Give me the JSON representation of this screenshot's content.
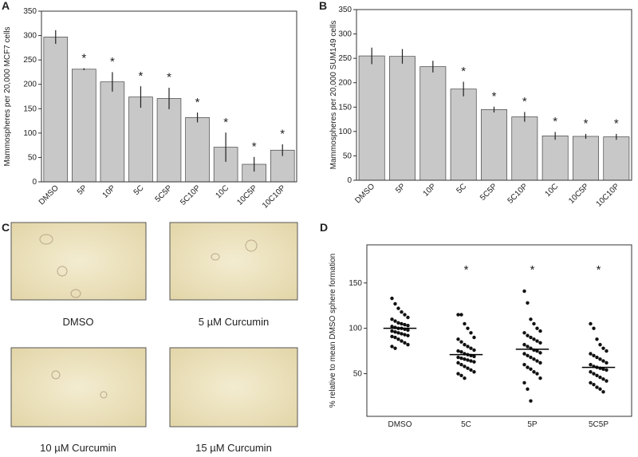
{
  "chart_data": [
    {
      "type": "bar",
      "panel": "A",
      "y_label": "Mammospheres per 20,000 MCF7 cells",
      "categories": [
        "DMSO",
        "5P",
        "10P",
        "5C",
        "5C5P",
        "5C10P",
        "10C",
        "10C5P",
        "10C10P"
      ],
      "values": [
        297,
        231,
        205,
        174,
        171,
        132,
        71,
        36,
        65
      ],
      "errors": [
        14,
        2,
        20,
        22,
        22,
        10,
        30,
        15,
        12
      ],
      "color": "#c8c8c8",
      "ylim": [
        0,
        350
      ],
      "yticks": [
        0,
        50,
        100,
        150,
        200,
        250,
        300,
        350
      ],
      "annotations": [
        {
          "text": "*",
          "x": "5P"
        },
        {
          "text": "*",
          "x": "10P"
        },
        {
          "text": "*",
          "x": "5C"
        },
        {
          "text": "*",
          "x": "5C5P"
        },
        {
          "text": "*",
          "x": "5C10P"
        },
        {
          "text": "*",
          "x": "10C"
        },
        {
          "text": "*",
          "x": "10C5P"
        },
        {
          "text": "*",
          "x": "10C10P"
        }
      ]
    },
    {
      "type": "bar",
      "panel": "B",
      "y_label": "Mammospheres per 20,000 SUM149 cells",
      "categories": [
        "DMSO",
        "5P",
        "10P",
        "5C",
        "5C5P",
        "5C10P",
        "10C",
        "10C5P",
        "10C10P"
      ],
      "values": [
        255,
        254,
        233,
        187,
        145,
        130,
        91,
        90,
        89
      ],
      "errors": [
        17,
        15,
        12,
        15,
        6,
        10,
        8,
        5,
        6
      ],
      "color": "#c8c8c8",
      "ylim": [
        0,
        350
      ],
      "yticks": [
        0,
        50,
        100,
        150,
        200,
        250,
        300,
        350
      ],
      "annotations": [
        {
          "text": "*",
          "x": "5C"
        },
        {
          "text": "*",
          "x": "5C5P"
        },
        {
          "text": "*",
          "x": "5C10P"
        },
        {
          "text": "*",
          "x": "10C"
        },
        {
          "text": "*",
          "x": "10C5P"
        },
        {
          "text": "*",
          "x": "10C10P"
        }
      ]
    },
    {
      "type": "strip",
      "panel": "D",
      "y_label": "% relative to mean DMSO sphere formation",
      "categories": [
        "DMSO",
        "5C",
        "5P",
        "5C5P"
      ],
      "points": [
        [
          133,
          127,
          122,
          118,
          115,
          112,
          110,
          108,
          106,
          105,
          104,
          103,
          102,
          101,
          100,
          100,
          99,
          98,
          97,
          96,
          95,
          94,
          93,
          92,
          91,
          90,
          88,
          86,
          84,
          82,
          80,
          78
        ],
        [
          115,
          115,
          105,
          100,
          95,
          90,
          88,
          85,
          82,
          80,
          78,
          76,
          75,
          74,
          72,
          71,
          70,
          69,
          68,
          67,
          66,
          65,
          64,
          63,
          62,
          60,
          58,
          56,
          54,
          52,
          50,
          48,
          45
        ],
        [
          141,
          128,
          110,
          105,
          100,
          97,
          95,
          92,
          90,
          88,
          86,
          84,
          82,
          80,
          78,
          76,
          75,
          73,
          72,
          70,
          68,
          66,
          64,
          62,
          60,
          57,
          55,
          52,
          50,
          45,
          40,
          33,
          20
        ],
        [
          105,
          100,
          88,
          82,
          78,
          75,
          72,
          70,
          68,
          66,
          64,
          62,
          60,
          58,
          57,
          56,
          55,
          54,
          52,
          50,
          48,
          46,
          44,
          42,
          40,
          38,
          35,
          33,
          30
        ]
      ],
      "means": [
        100,
        71,
        77,
        57
      ],
      "color": "#111111",
      "ylim": [
        3,
        192
      ],
      "yticks": [
        50,
        100,
        150
      ],
      "annotations": [
        {
          "text": "*",
          "x": "5C",
          "y": 157
        },
        {
          "text": "*",
          "x": "5P",
          "y": 157
        },
        {
          "text": "*",
          "x": "5C5P",
          "y": 157
        }
      ]
    }
  ],
  "images": {
    "panel": "C",
    "captions": [
      "DMSO",
      "5 µM Curcumin",
      "10 µM Curcumin",
      "15 µM Curcumin"
    ]
  }
}
